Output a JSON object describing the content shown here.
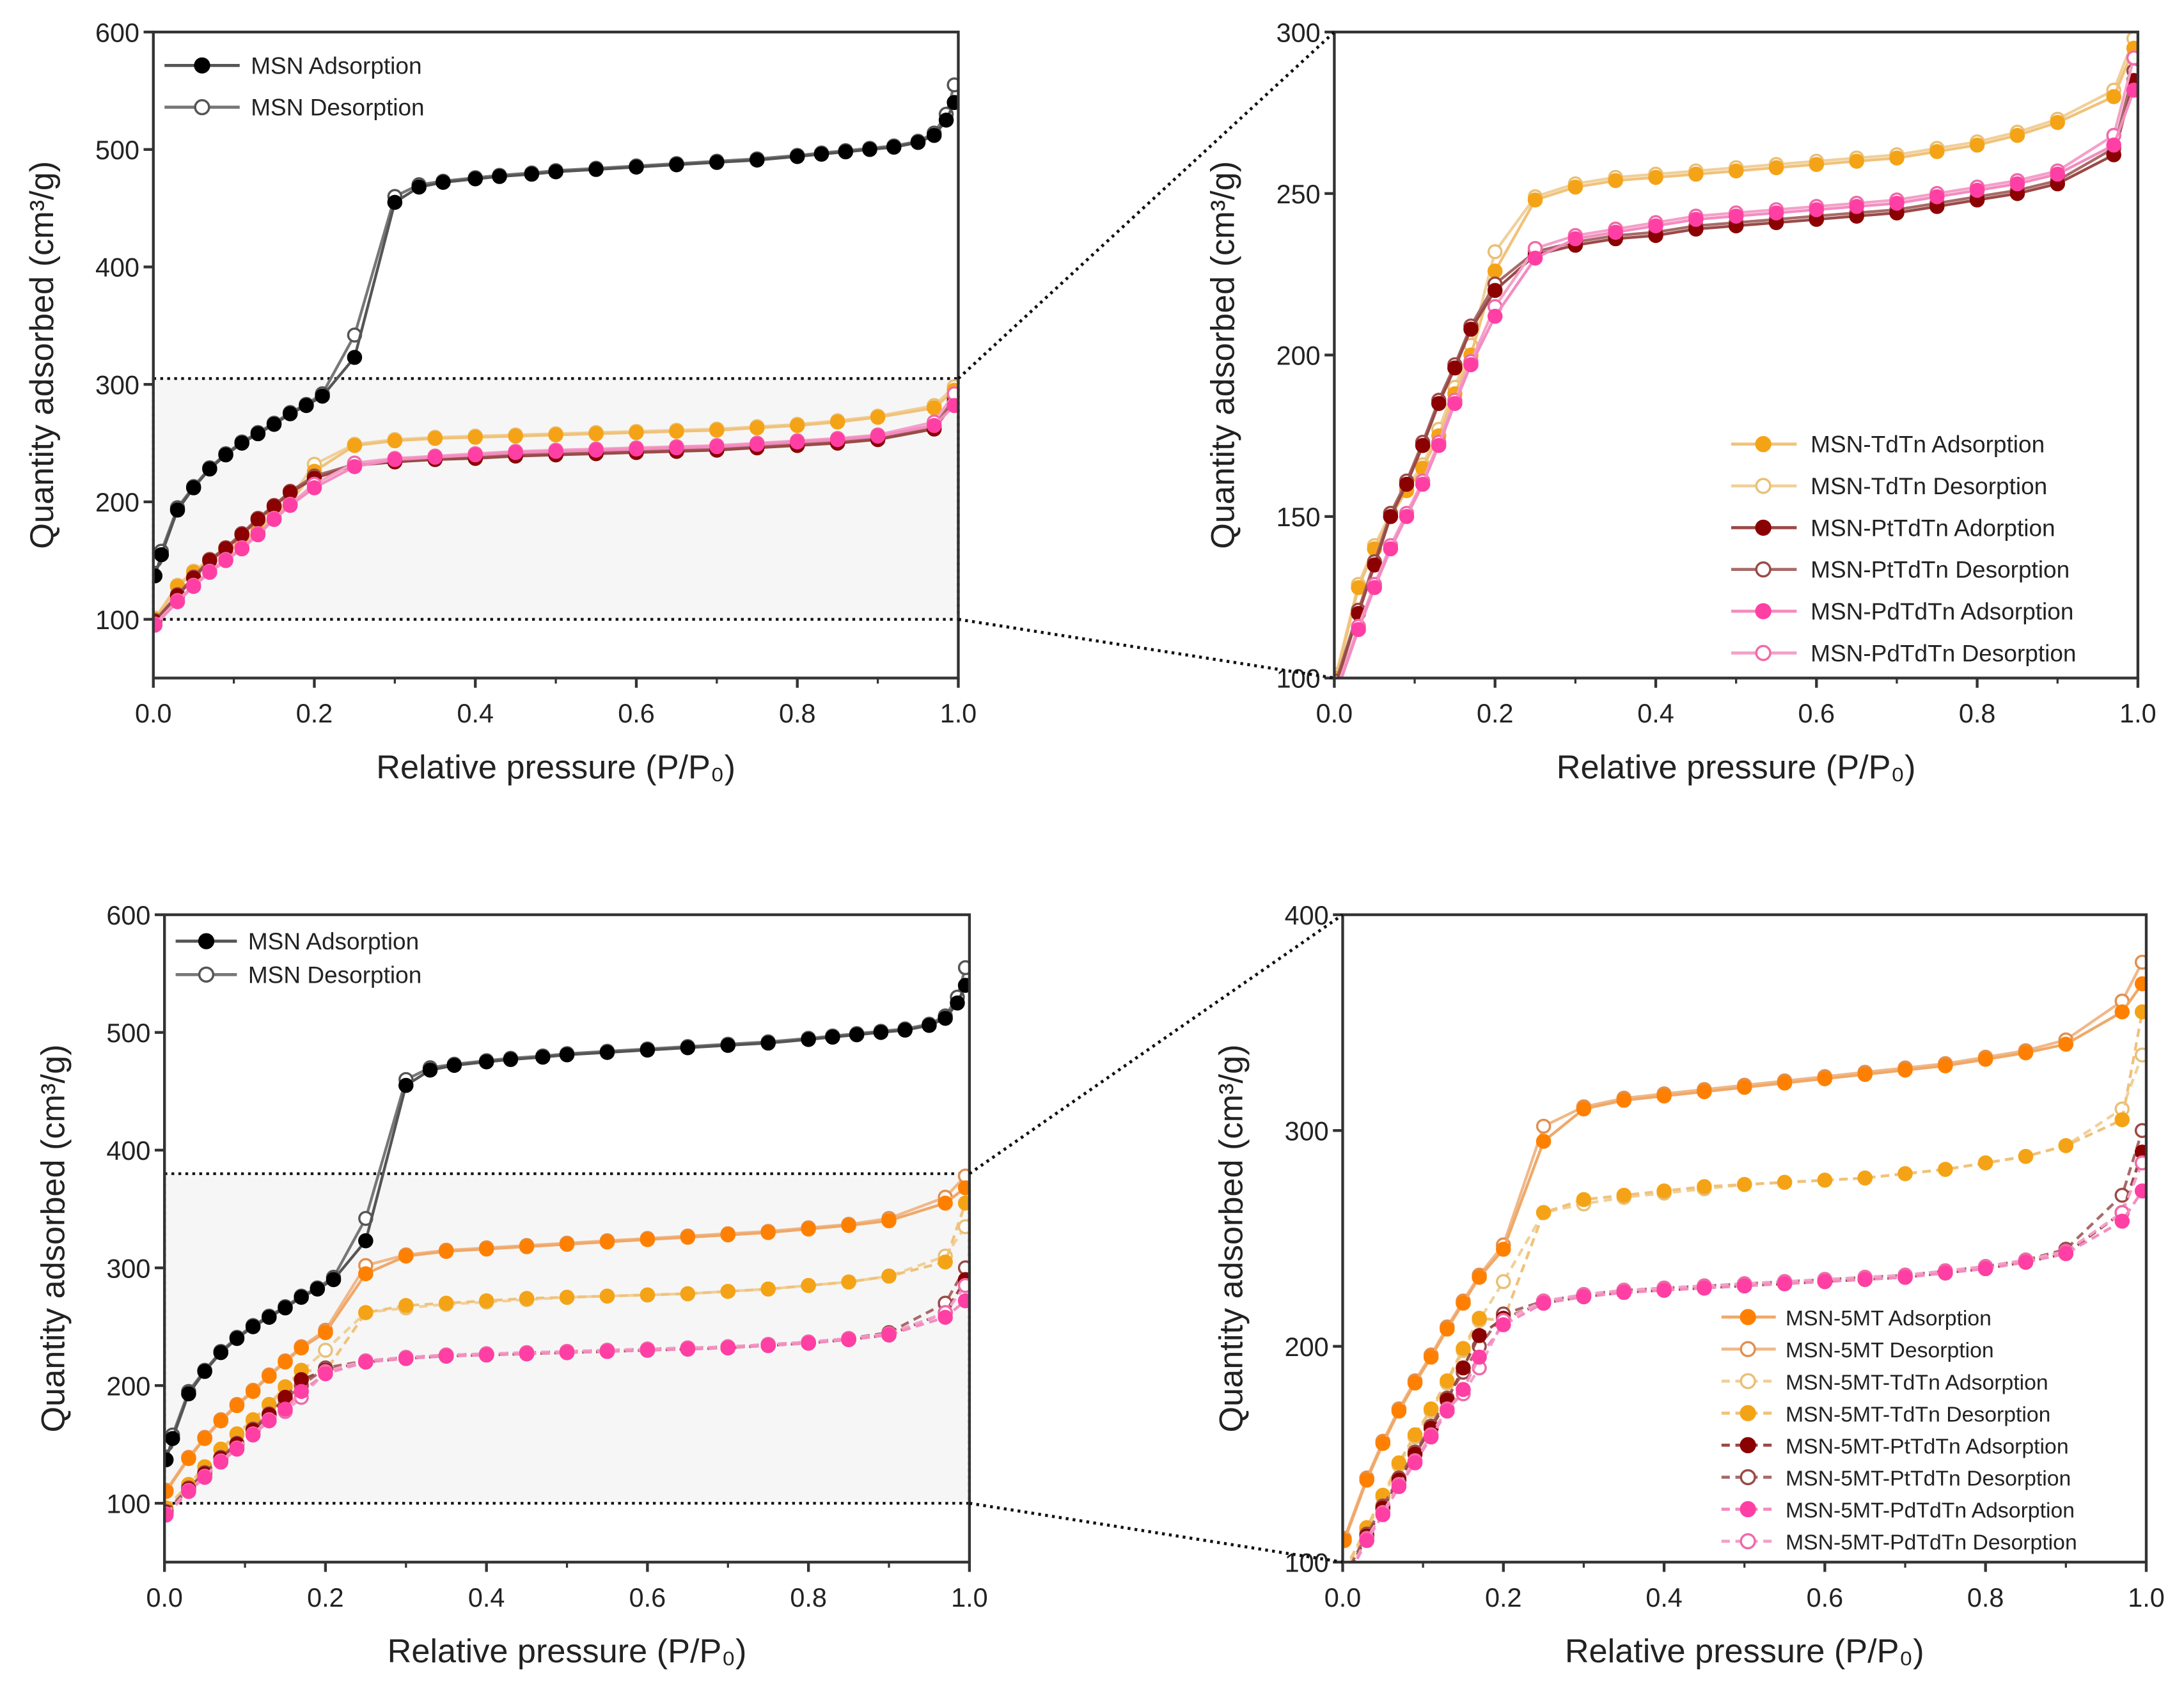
{
  "x_grid": [
    0.002,
    0.03,
    0.05,
    0.07,
    0.09,
    0.11,
    0.13,
    0.15,
    0.17,
    0.2,
    0.25,
    0.3,
    0.35,
    0.4,
    0.45,
    0.5,
    0.55,
    0.6,
    0.65,
    0.7,
    0.75,
    0.8,
    0.85,
    0.9,
    0.97,
    0.995
  ],
  "msn_x": [
    0.002,
    0.01,
    0.03,
    0.05,
    0.07,
    0.09,
    0.11,
    0.13,
    0.15,
    0.17,
    0.19,
    0.21,
    0.25,
    0.3,
    0.33,
    0.36,
    0.4,
    0.43,
    0.47,
    0.5,
    0.55,
    0.6,
    0.65,
    0.7,
    0.75,
    0.8,
    0.83,
    0.86,
    0.89,
    0.92,
    0.95,
    0.97,
    0.985,
    0.995
  ],
  "datasets": {
    "msn_ads": {
      "name": "MSN Adsorption",
      "color": "#000000",
      "line": "#555555",
      "filled": true,
      "line_style": "solid",
      "xkey": "msn_x",
      "y": [
        137,
        155,
        193,
        212,
        228,
        240,
        250,
        258,
        266,
        275,
        282,
        290,
        323,
        455,
        468,
        472,
        475,
        477,
        479,
        481,
        483,
        485,
        487,
        489,
        491,
        494,
        496,
        498,
        500,
        502,
        506,
        512,
        525,
        540
      ]
    },
    "msn_des": {
      "name": "MSN Desorption",
      "color": "#555555",
      "line": "#777777",
      "filled": false,
      "line_style": "solid",
      "xkey": "msn_x",
      "y": [
        150,
        158,
        195,
        213,
        229,
        241,
        251,
        259,
        267,
        276,
        283,
        292,
        342,
        460,
        470,
        473,
        476,
        478,
        480,
        482,
        484,
        486,
        488,
        490,
        492,
        495,
        497,
        499,
        501,
        503,
        507,
        514,
        530,
        555
      ]
    },
    "tdtn_ads": {
      "name": "MSN-TdTn Adsorption",
      "color": "#f5a316",
      "line": "#f0c27a",
      "filled": true,
      "line_style": "solid",
      "xkey": "x_grid",
      "y": [
        100,
        128,
        140,
        150,
        158,
        165,
        175,
        188,
        200,
        226,
        248,
        252,
        254,
        255,
        256,
        257,
        258,
        259,
        260,
        261,
        263,
        265,
        268,
        272,
        280,
        295
      ]
    },
    "tdtn_des": {
      "name": "MSN-TdTn Desorption",
      "color": "#e8c078",
      "line": "#f0d09a",
      "filled": false,
      "line_style": "solid",
      "xkey": "x_grid",
      "y": [
        101,
        129,
        141,
        151,
        159,
        166,
        177,
        190,
        203,
        232,
        249,
        253,
        255,
        256,
        257,
        258,
        259,
        260,
        261,
        262,
        264,
        266,
        269,
        273,
        282,
        298
      ]
    },
    "pt_ads": {
      "name": "MSN-PtTdTn Adorption",
      "color": "#8b0000",
      "line": "#9a4a48",
      "filled": true,
      "line_style": "solid",
      "xkey": "x_grid",
      "y": [
        98,
        120,
        135,
        150,
        160,
        172,
        185,
        196,
        208,
        220,
        231,
        234,
        236,
        237,
        239,
        240,
        241,
        242,
        243,
        244,
        246,
        248,
        250,
        253,
        262,
        285
      ]
    },
    "pt_des": {
      "name": "MSN-PtTdTn Desorption",
      "color": "#9a4a48",
      "line": "#a86a68",
      "filled": false,
      "line_style": "solid",
      "xkey": "x_grid",
      "y": [
        99,
        121,
        136,
        151,
        161,
        173,
        186,
        197,
        209,
        222,
        232,
        235,
        237,
        238,
        240,
        241,
        242,
        243,
        244,
        245,
        247,
        249,
        251,
        254,
        264,
        288
      ]
    },
    "pd_ads": {
      "name": "MSN-PdTdTn Adsorption",
      "color": "#ff3fa4",
      "line": "#f48cc0",
      "filled": true,
      "line_style": "solid",
      "xkey": "x_grid",
      "y": [
        95,
        115,
        128,
        140,
        150,
        160,
        172,
        185,
        197,
        212,
        230,
        236,
        238,
        240,
        242,
        243,
        244,
        245,
        246,
        247,
        249,
        251,
        253,
        256,
        265,
        282
      ]
    },
    "pd_des": {
      "name": "MSN-PdTdTn Desorption",
      "color": "#f06aa8",
      "line": "#f4a0c8",
      "filled": false,
      "line_style": "solid",
      "xkey": "x_grid",
      "y": [
        96,
        116,
        129,
        141,
        151,
        161,
        173,
        186,
        198,
        215,
        233,
        237,
        239,
        241,
        243,
        244,
        245,
        246,
        247,
        248,
        250,
        252,
        254,
        257,
        268,
        292
      ]
    },
    "mt_ads": {
      "name": "MSN-5MT Adsorption",
      "color": "#ff8000",
      "line": "#f0a868",
      "filled": true,
      "line_style": "solid",
      "xkey": "x_grid",
      "y": [
        110,
        138,
        155,
        170,
        183,
        195,
        208,
        220,
        232,
        245,
        295,
        310,
        314,
        316,
        318,
        320,
        322,
        324,
        326,
        328,
        330,
        333,
        336,
        340,
        355,
        368
      ]
    },
    "mt_des": {
      "name": "MSN-5MT Desorption",
      "color": "#e09050",
      "line": "#f0b888",
      "filled": false,
      "line_style": "solid",
      "xkey": "x_grid",
      "y": [
        111,
        139,
        156,
        171,
        184,
        196,
        209,
        221,
        233,
        247,
        302,
        311,
        315,
        317,
        319,
        321,
        323,
        325,
        327,
        329,
        331,
        334,
        337,
        342,
        360,
        378
      ]
    },
    "mttd_ads": {
      "name": "MSN-5MT-TdTn Adsorption",
      "color": "#e8c078",
      "line": "#f0d09a",
      "filled": false,
      "line_style": "dashed",
      "xkey": "x_grid",
      "y": [
        95,
        115,
        130,
        145,
        158,
        170,
        183,
        198,
        212,
        230,
        262,
        266,
        269,
        271,
        273,
        275,
        276,
        277,
        278,
        280,
        282,
        285,
        288,
        293,
        310,
        335
      ]
    },
    "mttd_des": {
      "name": "MSN-5MT-TdTn Desorption",
      "color": "#f5a316",
      "line": "#f0c27a",
      "filled": true,
      "line_style": "dashed",
      "xkey": "x_grid",
      "y": [
        96,
        116,
        131,
        146,
        159,
        171,
        184,
        199,
        213,
        212,
        262,
        268,
        270,
        272,
        274,
        275,
        276,
        277,
        278,
        280,
        282,
        285,
        288,
        293,
        305,
        355
      ]
    },
    "mtpt_ads": {
      "name": "MSN-5MT-PtTdTn Adsorption",
      "color": "#8b0000",
      "line": "#9a4a48",
      "filled": true,
      "line_style": "dashed",
      "xkey": "x_grid",
      "y": [
        92,
        112,
        125,
        138,
        150,
        162,
        175,
        190,
        205,
        213,
        220,
        223,
        225,
        226,
        227,
        228,
        229,
        230,
        231,
        232,
        234,
        236,
        239,
        243,
        262,
        290
      ]
    },
    "mtpt_des": {
      "name": "MSN-5MT-PtTdTn Desorption",
      "color": "#9a4a48",
      "line": "#a86a68",
      "filled": false,
      "line_style": "dashed",
      "xkey": "x_grid",
      "y": [
        93,
        113,
        126,
        139,
        151,
        163,
        176,
        188,
        200,
        215,
        221,
        224,
        226,
        227,
        228,
        229,
        230,
        231,
        232,
        233,
        235,
        237,
        240,
        245,
        270,
        300
      ]
    },
    "mtpd_ads": {
      "name": "MSN-5MT-PdTdTn Adsorption",
      "color": "#ff3fa4",
      "line": "#f48cc0",
      "filled": true,
      "line_style": "dashed",
      "xkey": "x_grid",
      "y": [
        90,
        110,
        122,
        135,
        146,
        158,
        170,
        180,
        195,
        210,
        220,
        223,
        225,
        226,
        227,
        228,
        229,
        230,
        231,
        232,
        234,
        236,
        239,
        243,
        258,
        272
      ]
    },
    "mtpd_des": {
      "name": "MSN-5MT-PdTdTn Desorption",
      "color": "#f06aa8",
      "line": "#f4a0c8",
      "filled": false,
      "line_style": "dashed",
      "xkey": "x_grid",
      "y": [
        91,
        111,
        123,
        136,
        147,
        159,
        171,
        178,
        190,
        212,
        221,
        224,
        226,
        227,
        228,
        229,
        230,
        231,
        232,
        233,
        235,
        237,
        240,
        244,
        262,
        285
      ]
    }
  },
  "chart_data": [
    {
      "id": "top-left",
      "type": "line",
      "xlabel": "Relative pressure (P/P₀)",
      "ylabel": "Quantity adsorbed (cm³/g)",
      "xlim": [
        0,
        1
      ],
      "ylim": [
        50,
        600
      ],
      "xticks": [
        "0.0",
        "0.2",
        "0.4",
        "0.6",
        "0.8",
        "1.0"
      ],
      "yticks": [
        "100",
        "200",
        "300",
        "400",
        "500",
        "600"
      ],
      "zoom_region": [
        100,
        305
      ],
      "legend": "top-left",
      "series": [
        "tdtn_des",
        "tdtn_ads",
        "pt_des",
        "pt_ads",
        "pd_des",
        "pd_ads",
        "msn_des",
        "msn_ads"
      ],
      "legend_entries": [
        "msn_ads",
        "msn_des"
      ]
    },
    {
      "id": "top-right",
      "type": "line",
      "xlabel": "Relative pressure (P/P₀)",
      "ylabel": "Quantity adsorbed (cm³/g)",
      "xlim": [
        0,
        1
      ],
      "ylim": [
        100,
        300
      ],
      "xticks": [
        "0.0",
        "0.2",
        "0.4",
        "0.6",
        "0.8",
        "1.0"
      ],
      "yticks": [
        "100",
        "150",
        "200",
        "250",
        "300"
      ],
      "legend": "bottom-right",
      "series": [
        "tdtn_des",
        "tdtn_ads",
        "pt_des",
        "pt_ads",
        "pd_des",
        "pd_ads"
      ],
      "legend_entries": [
        "tdtn_ads",
        "tdtn_des",
        "pt_ads",
        "pt_des",
        "pd_ads",
        "pd_des"
      ]
    },
    {
      "id": "bottom-left",
      "type": "line",
      "xlabel": "Relative pressure (P/P₀)",
      "ylabel": "Quantity adsorbed (cm³/g)",
      "xlim": [
        0,
        1
      ],
      "ylim": [
        50,
        600
      ],
      "xticks": [
        "0.0",
        "0.2",
        "0.4",
        "0.6",
        "0.8",
        "1.0"
      ],
      "yticks": [
        "100",
        "200",
        "300",
        "400",
        "500",
        "600"
      ],
      "zoom_region": [
        100,
        380
      ],
      "legend": "top-left",
      "series": [
        "mt_des",
        "mt_ads",
        "mttd_ads",
        "mttd_des",
        "mtpt_des",
        "mtpt_ads",
        "mtpd_des",
        "mtpd_ads",
        "msn_des",
        "msn_ads"
      ],
      "legend_entries": [
        "msn_ads",
        "msn_des"
      ]
    },
    {
      "id": "bottom-right",
      "type": "line",
      "xlabel": "Relative pressure (P/P₀)",
      "ylabel": "Quantity adsorbed (cm³/g)",
      "xlim": [
        0,
        1
      ],
      "ylim": [
        100,
        400
      ],
      "xticks": [
        "0.0",
        "0.2",
        "0.4",
        "0.6",
        "0.8",
        "1.0"
      ],
      "yticks": [
        "100",
        "200",
        "300",
        "400"
      ],
      "legend": "bottom-right",
      "series": [
        "mt_des",
        "mt_ads",
        "mttd_ads",
        "mttd_des",
        "mtpt_des",
        "mtpt_ads",
        "mtpd_des",
        "mtpd_ads"
      ],
      "legend_entries": [
        "mt_ads",
        "mt_des",
        "mttd_ads",
        "mttd_des",
        "mtpt_ads",
        "mtpt_des",
        "mtpd_ads",
        "mtpd_des"
      ]
    }
  ]
}
